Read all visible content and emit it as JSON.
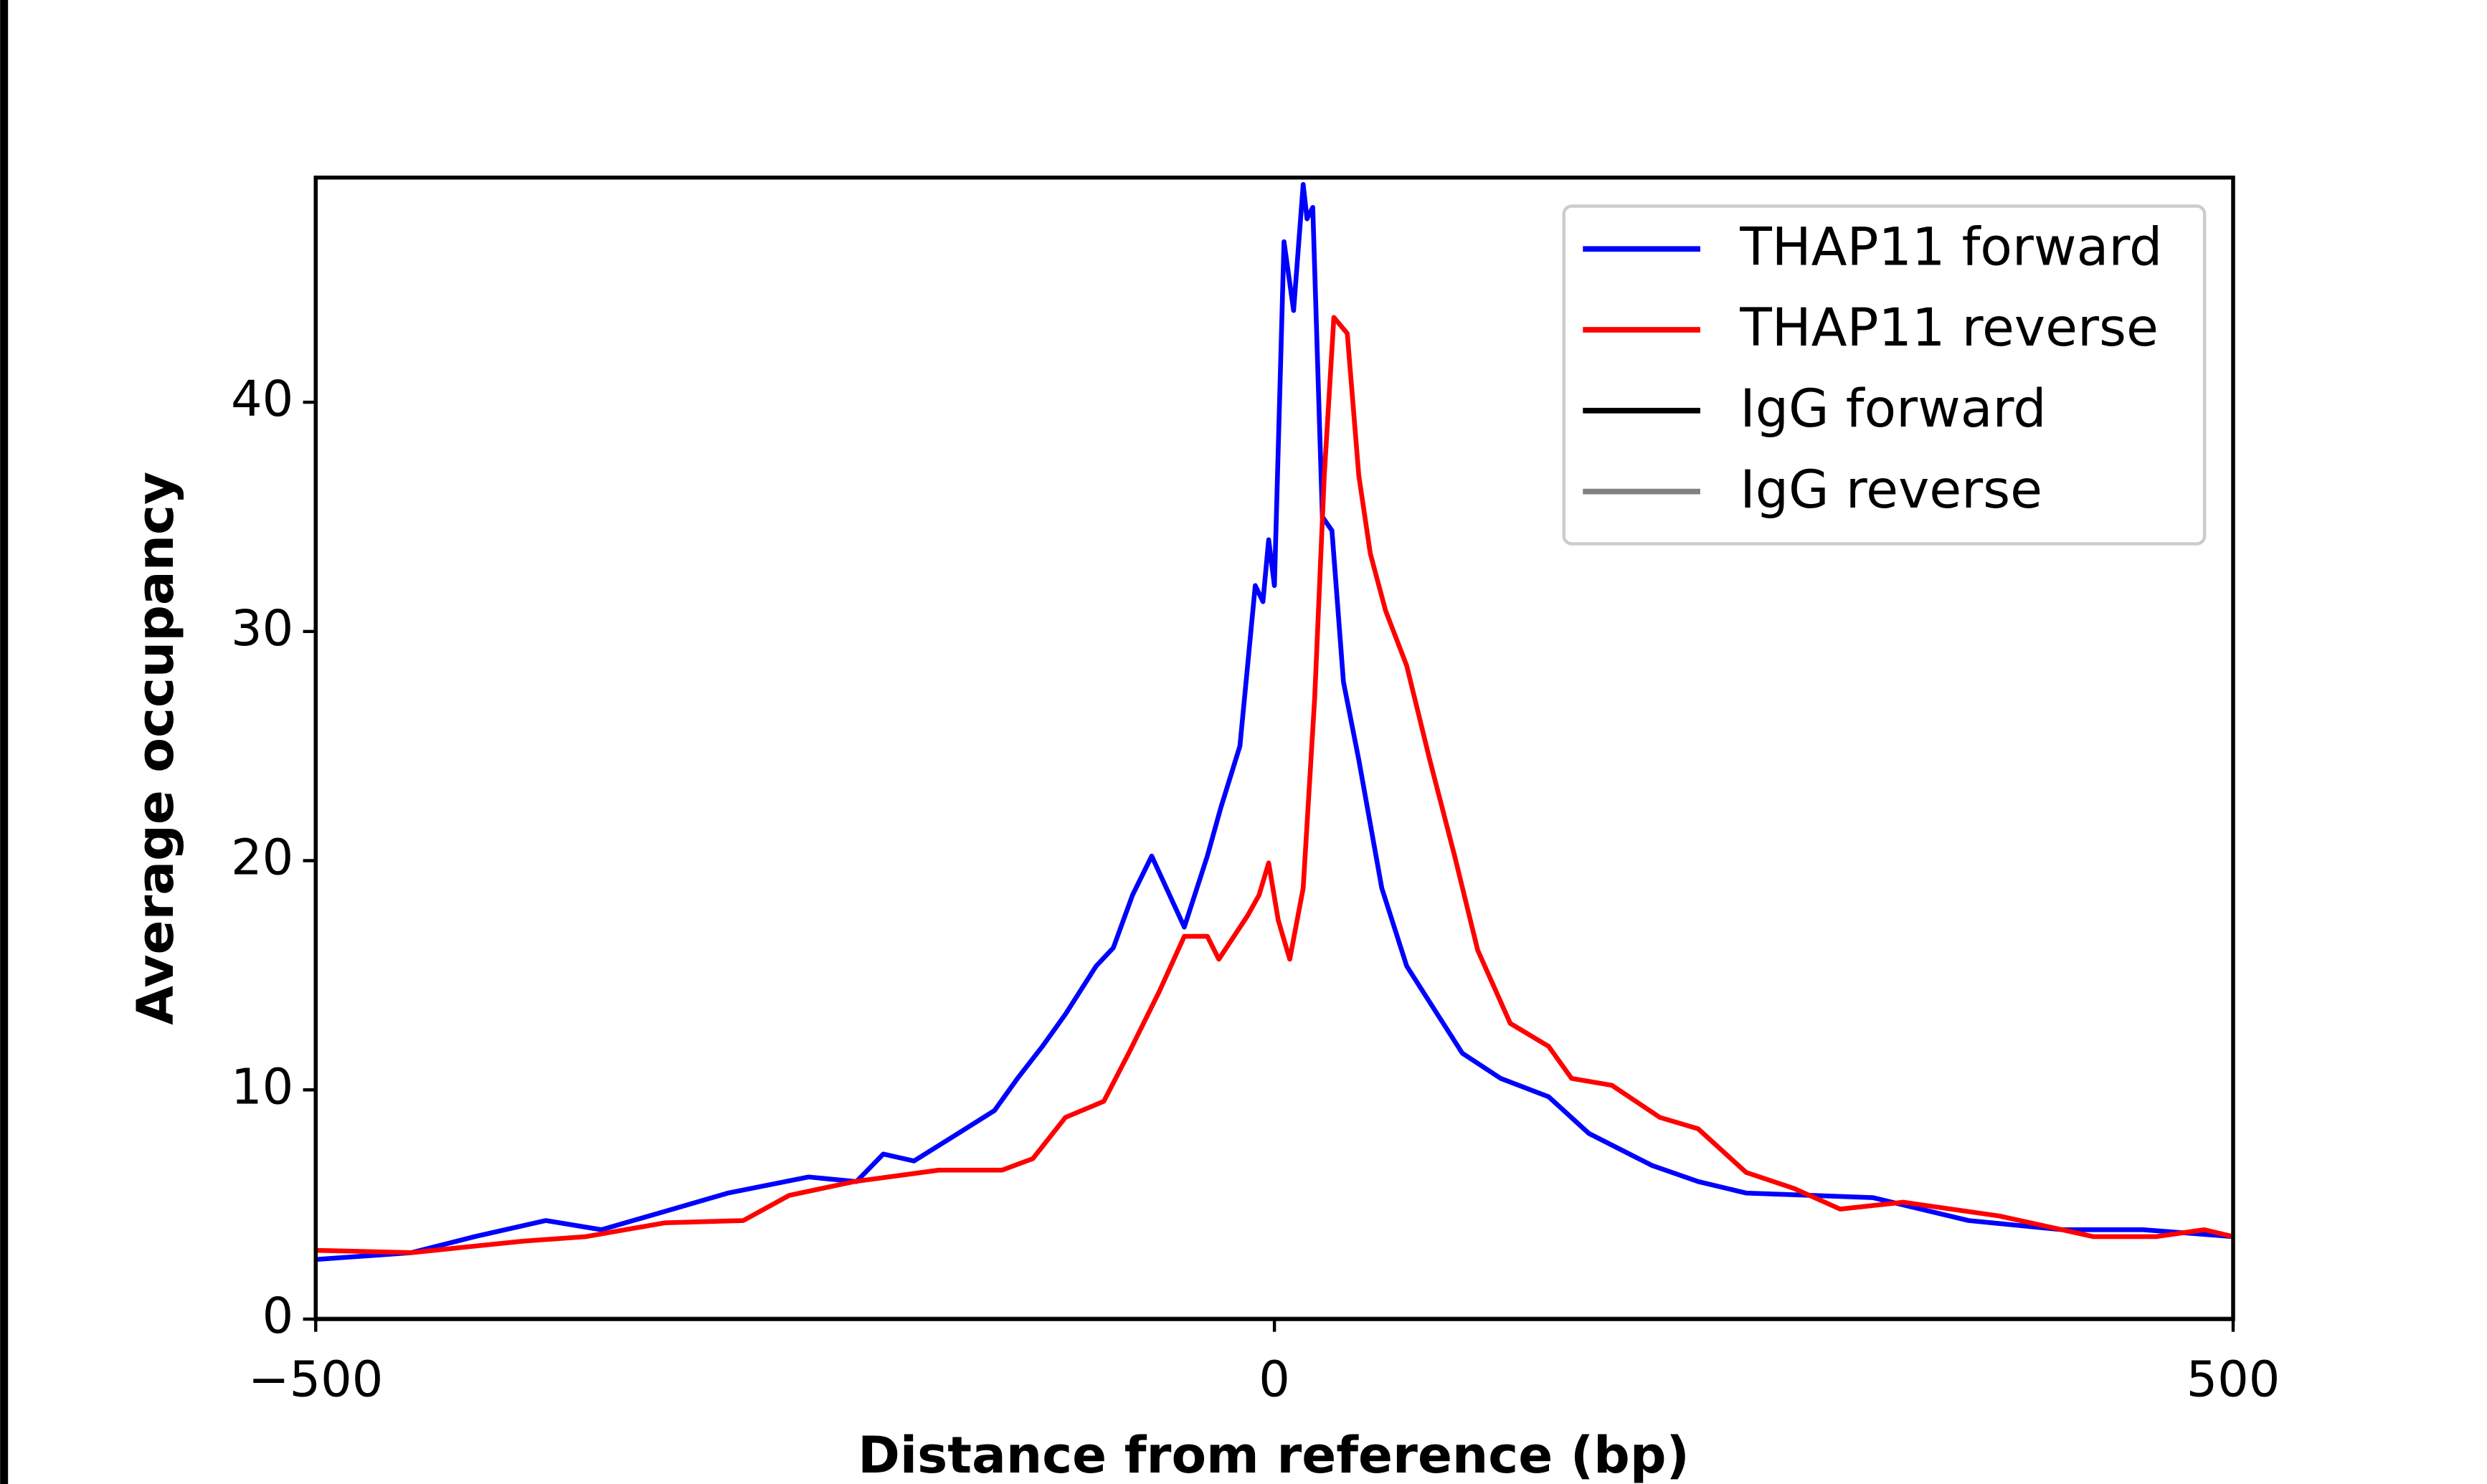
{
  "chart_data": {
    "type": "line",
    "xlabel": "Distance from reference (bp)",
    "ylabel": "Average occupancy",
    "xlim": [
      -500,
      500
    ],
    "ylim": [
      0,
      49.8
    ],
    "xticks": [
      {
        "value": -500,
        "label": "−500"
      },
      0,
      500
    ],
    "yticks": [
      0,
      10,
      20,
      30,
      40
    ],
    "legend": "upper right",
    "grid": false,
    "series": [
      {
        "name": "THAP11 forward",
        "color": "#0000ff",
        "x": [
          -500,
          -450,
          -417,
          -380,
          -351,
          -322,
          -285,
          -243,
          -218,
          -204,
          -188,
          -165,
          -146,
          -134,
          -121,
          -109,
          -93,
          -84,
          -74,
          -64,
          -47,
          -35,
          -28,
          -18,
          -10,
          -6,
          -3,
          0,
          5,
          10,
          15,
          17,
          20,
          25,
          30,
          36,
          44,
          56,
          69,
          85,
          98,
          118,
          143,
          164,
          197,
          221,
          246,
          312,
          362,
          411,
          453,
          500
        ],
        "values": [
          2.6,
          2.9,
          3.6,
          4.3,
          3.9,
          4.6,
          5.5,
          6.2,
          6.0,
          7.2,
          6.9,
          8.1,
          9.1,
          10.5,
          11.9,
          13.3,
          15.4,
          16.2,
          18.5,
          20.2,
          17.1,
          20.2,
          22.3,
          25.0,
          32.0,
          31.3,
          34.0,
          32.0,
          47.0,
          44.0,
          49.5,
          48.0,
          48.5,
          35.0,
          34.4,
          27.8,
          24.4,
          18.8,
          15.4,
          13.3,
          11.6,
          10.5,
          9.7,
          8.1,
          6.7,
          6.0,
          5.5,
          5.3,
          4.3,
          3.9,
          3.9,
          3.6
        ]
      },
      {
        "name": "THAP11 reverse",
        "color": "#ff0000",
        "x": [
          -500,
          -450,
          -392,
          -359,
          -318,
          -277,
          -253,
          -219,
          -175,
          -142,
          -126,
          -109,
          -89,
          -76,
          -60,
          -47,
          -35,
          -29,
          -14,
          -8,
          -3,
          2,
          8,
          15,
          21,
          26,
          31,
          38,
          44,
          50,
          58,
          69,
          81,
          94,
          106,
          123,
          143,
          155,
          176,
          201,
          221,
          246,
          271,
          295,
          328,
          378,
          427,
          460,
          485,
          500
        ],
        "values": [
          3.0,
          2.9,
          3.4,
          3.6,
          4.2,
          4.3,
          5.4,
          6.0,
          6.5,
          6.5,
          7.0,
          8.8,
          9.5,
          11.6,
          14.3,
          16.7,
          16.7,
          15.7,
          17.6,
          18.5,
          19.9,
          17.4,
          15.7,
          18.8,
          27.1,
          36.8,
          43.7,
          43.0,
          36.8,
          33.4,
          30.9,
          28.5,
          24.4,
          20.2,
          16.1,
          12.9,
          11.9,
          10.5,
          10.2,
          8.8,
          8.3,
          6.4,
          5.7,
          4.8,
          5.1,
          4.5,
          3.6,
          3.6,
          3.9,
          3.6
        ]
      },
      {
        "name": "IgG forward",
        "color": "#000000",
        "x": [
          -500,
          500
        ],
        "values": [
          0,
          0
        ]
      },
      {
        "name": "IgG reverse",
        "color": "#808080",
        "x": [
          -500,
          500
        ],
        "values": [
          0,
          0
        ]
      }
    ]
  }
}
